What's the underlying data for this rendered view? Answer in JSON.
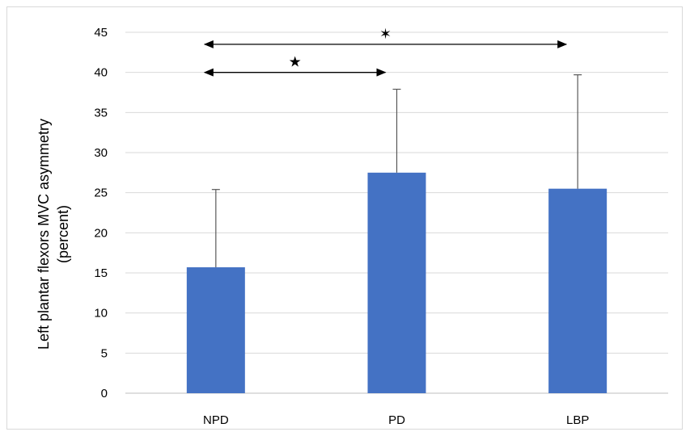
{
  "chart_data": {
    "type": "bar",
    "categories": [
      "NPD",
      "PD",
      "LBP"
    ],
    "values": [
      15.7,
      27.5,
      25.5
    ],
    "error_upper": [
      25.4,
      37.9,
      39.7
    ],
    "title": "",
    "xlabel": "",
    "ylabel_lines": [
      "Left plantar flexors MVC asymmetry",
      "(percent)"
    ],
    "ylim": [
      0,
      45
    ],
    "yticks": [
      0,
      5,
      10,
      15,
      20,
      25,
      30,
      35,
      40,
      45
    ],
    "grid": true,
    "bar_color": "#4472c4",
    "significance": [
      {
        "from": "NPD",
        "to": "PD",
        "y": 40,
        "marker": "★"
      },
      {
        "from": "NPD",
        "to": "LBP",
        "y": 43.5,
        "marker": "✶"
      }
    ]
  }
}
